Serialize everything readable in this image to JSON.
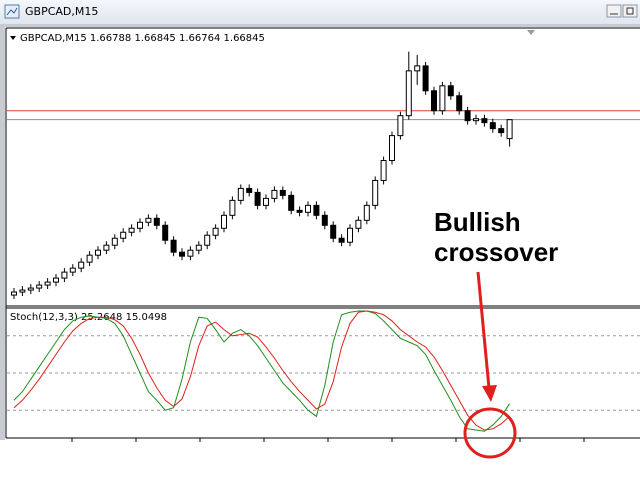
{
  "window": {
    "title": "GBPCAD,M15"
  },
  "chart_data": [
    {
      "type": "candlestick",
      "symbol": "GBPCAD,M15",
      "open": [
        1.66317,
        1.66326,
        1.66332,
        1.66338,
        1.66347,
        1.66356,
        1.66368,
        1.66386,
        1.66398,
        1.66416,
        1.66437,
        1.66452,
        1.66467,
        1.66488,
        1.66506,
        1.66518,
        1.66536,
        1.66548,
        1.66527,
        1.66482,
        1.66446,
        1.66434,
        1.66452,
        1.66467,
        1.66497,
        1.66518,
        1.66557,
        1.66602,
        1.66638,
        1.66626,
        1.66587,
        1.66608,
        1.66632,
        1.66617,
        1.66572,
        1.66566,
        1.66587,
        1.66557,
        1.66527,
        1.66488,
        1.66476,
        1.66518,
        1.66542,
        1.66587,
        1.66662,
        1.66722,
        1.66797,
        1.66857,
        1.66992,
        1.67007,
        1.66932,
        1.66872,
        1.66947,
        1.66917,
        1.66872,
        1.66842,
        1.66848,
        1.66836,
        1.66818,
        1.66788
      ],
      "high": [
        1.66338,
        1.66344,
        1.6635,
        1.66359,
        1.66368,
        1.6638,
        1.66398,
        1.6641,
        1.66428,
        1.66449,
        1.66464,
        1.66479,
        1.665,
        1.66518,
        1.6653,
        1.66548,
        1.6656,
        1.6656,
        1.66539,
        1.66494,
        1.66458,
        1.66464,
        1.66479,
        1.66509,
        1.6653,
        1.66569,
        1.66614,
        1.6665,
        1.6665,
        1.66638,
        1.6662,
        1.66644,
        1.66644,
        1.66629,
        1.66584,
        1.66599,
        1.66599,
        1.66569,
        1.66539,
        1.665,
        1.6653,
        1.66554,
        1.66599,
        1.66674,
        1.66734,
        1.66809,
        1.66869,
        1.6705,
        1.6704,
        1.67019,
        1.66944,
        1.66959,
        1.66959,
        1.66929,
        1.66884,
        1.6686,
        1.6686,
        1.66848,
        1.6683,
        1.66845
      ],
      "low": [
        1.66305,
        1.66314,
        1.6632,
        1.66326,
        1.66335,
        1.66344,
        1.66356,
        1.66374,
        1.66386,
        1.66404,
        1.66425,
        1.6644,
        1.66455,
        1.66476,
        1.66494,
        1.66506,
        1.66524,
        1.66515,
        1.6647,
        1.66434,
        1.66422,
        1.66422,
        1.6644,
        1.66455,
        1.66485,
        1.66506,
        1.66545,
        1.6659,
        1.66614,
        1.66575,
        1.66575,
        1.66596,
        1.66605,
        1.6656,
        1.66554,
        1.66554,
        1.66545,
        1.66515,
        1.66476,
        1.66464,
        1.66464,
        1.66506,
        1.6653,
        1.66575,
        1.6665,
        1.6671,
        1.66785,
        1.66845,
        1.6695,
        1.6692,
        1.6686,
        1.6686,
        1.66905,
        1.6686,
        1.6683,
        1.6683,
        1.66824,
        1.66806,
        1.66794,
        1.66764
      ],
      "close": [
        1.66326,
        1.66332,
        1.66338,
        1.66347,
        1.66356,
        1.66368,
        1.66386,
        1.66398,
        1.66416,
        1.66437,
        1.66452,
        1.66467,
        1.66488,
        1.66506,
        1.66518,
        1.66536,
        1.66548,
        1.66527,
        1.66482,
        1.66446,
        1.66434,
        1.66452,
        1.66467,
        1.66497,
        1.66518,
        1.66557,
        1.66602,
        1.66638,
        1.66626,
        1.66587,
        1.66608,
        1.66632,
        1.66617,
        1.66572,
        1.66566,
        1.66587,
        1.66557,
        1.66527,
        1.66488,
        1.66476,
        1.66518,
        1.66542,
        1.66587,
        1.66662,
        1.66722,
        1.66797,
        1.66857,
        1.66992,
        1.67007,
        1.66932,
        1.66872,
        1.66947,
        1.66917,
        1.66872,
        1.66842,
        1.66848,
        1.66836,
        1.66818,
        1.66806,
        1.66845
      ],
      "ylim": [
        1.66287,
        1.67118
      ],
      "levels": [
        {
          "value": 1.66872,
          "color": "#d9432f"
        },
        {
          "value": 1.66845,
          "color": "#7f8fa8"
        }
      ],
      "up_color": "#ffffff",
      "down_color": "#000000"
    },
    {
      "type": "line",
      "name": "Stoch(12,3,3)",
      "series": [
        {
          "color": "#1f8f1f",
          "values": [
            28,
            35,
            45,
            55,
            65,
            75,
            85,
            92,
            95,
            96,
            95,
            94,
            90,
            80,
            65,
            50,
            35,
            28,
            20,
            22,
            45,
            75,
            95,
            94,
            85,
            75,
            82,
            85,
            80,
            72,
            62,
            52,
            42,
            35,
            28,
            20,
            15,
            40,
            75,
            97,
            99,
            100,
            100,
            98,
            92,
            85,
            78,
            75,
            72,
            65,
            52,
            40,
            28,
            15,
            5,
            4,
            3,
            8,
            15,
            25.2648
          ]
        },
        {
          "color": "#e0201c",
          "values": [
            22,
            28,
            36,
            45,
            55,
            65,
            75,
            84,
            90,
            94,
            95,
            95,
            93,
            88,
            78,
            65,
            50,
            38,
            28,
            23,
            29,
            47,
            72,
            88,
            91,
            85,
            80,
            81,
            82,
            79,
            71,
            62,
            52,
            43,
            35,
            28,
            21,
            25,
            43,
            71,
            90,
            99,
            100,
            99,
            97,
            92,
            85,
            80,
            75,
            71,
            63,
            52,
            40,
            28,
            16,
            8,
            4,
            5,
            9,
            15.0498
          ]
        }
      ],
      "ylim": [
        0,
        100
      ],
      "levels": [
        20,
        50,
        80
      ],
      "annotation": [
        "Bullish",
        "crossover"
      ]
    }
  ]
}
